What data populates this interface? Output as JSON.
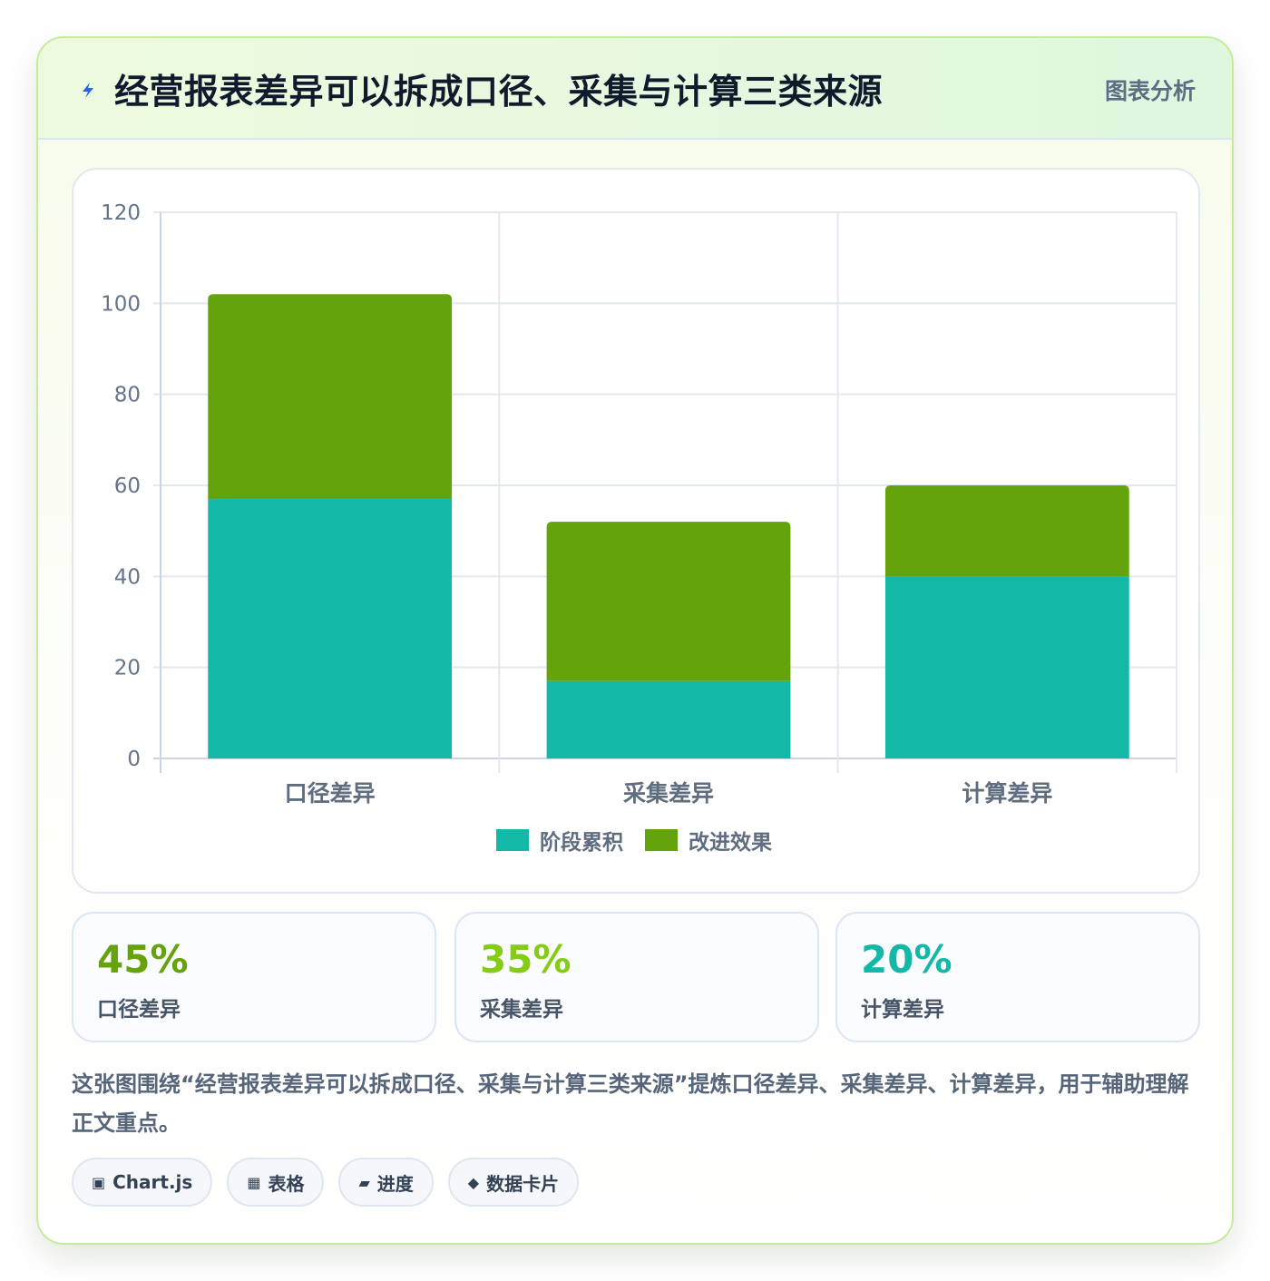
{
  "header": {
    "title": "经营报表差异可以拆成口径、采集与计算三类来源",
    "tag": "图表分析"
  },
  "chart_data": {
    "type": "bar",
    "stacked": true,
    "categories": [
      "口径差异",
      "采集差异",
      "计算差异"
    ],
    "series": [
      {
        "name": "阶段累积",
        "color": "#14b8a6",
        "values": [
          57,
          17,
          40
        ]
      },
      {
        "name": "改进效果",
        "color": "#65a30d",
        "values": [
          45,
          35,
          20
        ]
      }
    ],
    "title": "",
    "xlabel": "",
    "ylabel": "",
    "ylim": [
      0,
      120
    ],
    "yticks": [
      0,
      20,
      40,
      60,
      80,
      100,
      120
    ],
    "grid": true,
    "legend_position": "bottom"
  },
  "stats": [
    {
      "value": "45%",
      "label": "口径差异",
      "color": "#65a30d"
    },
    {
      "value": "35%",
      "label": "采集差异",
      "color": "#84cc16"
    },
    {
      "value": "20%",
      "label": "计算差异",
      "color": "#14b8a6"
    }
  ],
  "description": "这张图围绕“经营报表差异可以拆成口径、采集与计算三类来源”提炼口径差异、采集差异、计算差异，用于辅助理解正文重点。",
  "chips": [
    {
      "icon": "▣",
      "icon_name": "chart-icon",
      "label": "Chart.js"
    },
    {
      "icon": "▦",
      "icon_name": "table-icon",
      "label": "表格"
    },
    {
      "icon": "▰",
      "icon_name": "progress-icon",
      "label": "进度"
    },
    {
      "icon": "◆",
      "icon_name": "data-card-icon",
      "label": "数据卡片"
    }
  ]
}
